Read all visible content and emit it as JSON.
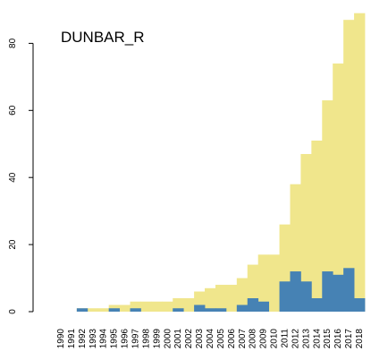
{
  "chart_data": {
    "type": "bar",
    "title": "DUNBAR_R",
    "xlabel": "",
    "ylabel": "",
    "ylim": [
      0,
      90
    ],
    "yticks": [
      0,
      20,
      40,
      60,
      80
    ],
    "grid": false,
    "legend": "none",
    "categories": [
      "1990",
      "1991",
      "1992",
      "1993",
      "1994",
      "1995",
      "1996",
      "1997",
      "1998",
      "1999",
      "2000",
      "2001",
      "2002",
      "2003",
      "2004",
      "2005",
      "2006",
      "2007",
      "2008",
      "2009",
      "2010",
      "2011",
      "2012",
      "2013",
      "2014",
      "2015",
      "2016",
      "2017",
      "2018"
    ],
    "series": [
      {
        "color": "#f0e68c",
        "values": [
          0,
          0,
          1,
          1,
          1,
          2,
          2,
          3,
          3,
          3,
          3,
          4,
          4,
          6,
          7,
          8,
          8,
          10,
          14,
          17,
          17,
          26,
          38,
          47,
          51,
          63,
          74,
          87,
          89
        ]
      },
      {
        "color": "#4682b4",
        "values": [
          0,
          0,
          1,
          0,
          0,
          1,
          0,
          1,
          0,
          0,
          0,
          1,
          0,
          2,
          1,
          1,
          0,
          2,
          4,
          3,
          0,
          9,
          12,
          9,
          4,
          12,
          11,
          13,
          4
        ]
      }
    ]
  }
}
